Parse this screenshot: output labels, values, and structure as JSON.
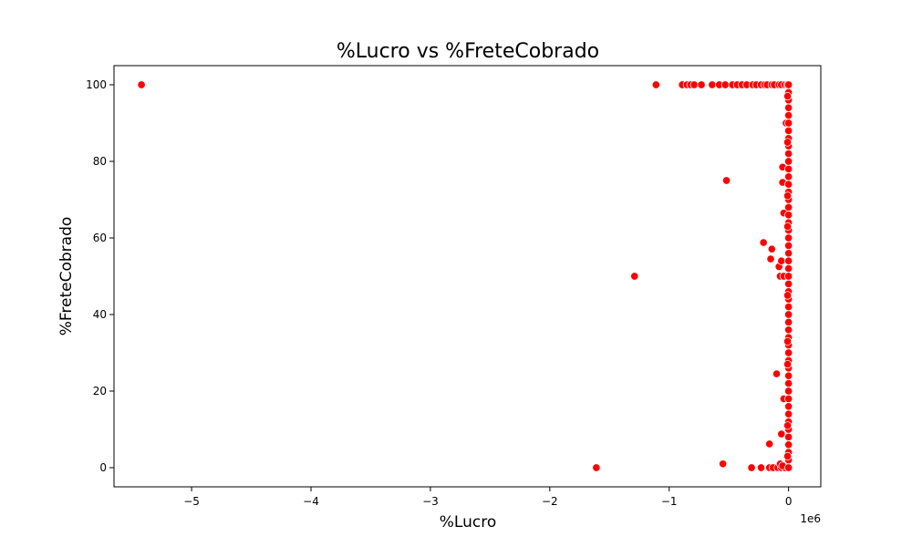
{
  "chart_data": {
    "type": "scatter",
    "title": "%Lucro vs %FreteCobrado",
    "xlabel": "%Lucro",
    "ylabel": "%FreteCobrado",
    "x_offset_label": "1e6",
    "x_scale": 1000000,
    "xlim": [
      -5650000,
      270000
    ],
    "ylim": [
      -5,
      105
    ],
    "x_ticks": [
      -5000000,
      -4000000,
      -3000000,
      -2000000,
      -1000000,
      0
    ],
    "x_tick_labels": [
      "−5",
      "−4",
      "−3",
      "−2",
      "−1",
      "0"
    ],
    "y_ticks": [
      0,
      20,
      40,
      60,
      80,
      100
    ],
    "y_tick_labels": [
      "0",
      "20",
      "40",
      "60",
      "80",
      "100"
    ],
    "marker_color": "#ff0000",
    "series": [
      {
        "points": [
          [
            -5420000,
            100
          ],
          [
            -1110000,
            100
          ],
          [
            -890000,
            100
          ],
          [
            -850000,
            100
          ],
          [
            -820000,
            100
          ],
          [
            -790000,
            100
          ],
          [
            -730000,
            100
          ],
          [
            -640000,
            100
          ],
          [
            -580000,
            100
          ],
          [
            -530000,
            100
          ],
          [
            -470000,
            100
          ],
          [
            -430000,
            100
          ],
          [
            -390000,
            100
          ],
          [
            -350000,
            100
          ],
          [
            -300000,
            100
          ],
          [
            -270000,
            100
          ],
          [
            -230000,
            100
          ],
          [
            -200000,
            100
          ],
          [
            -180000,
            100
          ],
          [
            -140000,
            100
          ],
          [
            -120000,
            100
          ],
          [
            -80000,
            100
          ],
          [
            -60000,
            100
          ],
          [
            -30000,
            100
          ],
          [
            -10000,
            100
          ],
          [
            -520000,
            75
          ],
          [
            -1290000,
            50
          ],
          [
            -1610000,
            0
          ],
          [
            -550000,
            1
          ],
          [
            -310000,
            0
          ],
          [
            -230000,
            0
          ],
          [
            -160000,
            0
          ],
          [
            -130000,
            0
          ],
          [
            -90000,
            0
          ],
          [
            -60000,
            0
          ],
          [
            -30000,
            0
          ],
          [
            -210000,
            58.8
          ],
          [
            -140000,
            57.1
          ],
          [
            -150000,
            54.5
          ],
          [
            -80000,
            52.5
          ],
          [
            -60000,
            54
          ],
          [
            -70000,
            50
          ],
          [
            -40000,
            50
          ],
          [
            -100000,
            24.5
          ],
          [
            -160000,
            6.2
          ],
          [
            -60000,
            8.8
          ],
          [
            -40000,
            18
          ],
          [
            -70000,
            1
          ],
          [
            -50000,
            0.5
          ],
          [
            -50000,
            78.5
          ],
          [
            -50000,
            74.5
          ],
          [
            -40000,
            66.5
          ],
          [
            -20000,
            90
          ],
          [
            0,
            100
          ],
          [
            0,
            98
          ],
          [
            0,
            96
          ],
          [
            0,
            94
          ],
          [
            0,
            92
          ],
          [
            0,
            90
          ],
          [
            0,
            88
          ],
          [
            0,
            86
          ],
          [
            0,
            84
          ],
          [
            0,
            82
          ],
          [
            0,
            80
          ],
          [
            0,
            78
          ],
          [
            0,
            76
          ],
          [
            0,
            74
          ],
          [
            0,
            72
          ],
          [
            0,
            70
          ],
          [
            0,
            68
          ],
          [
            0,
            66
          ],
          [
            0,
            64
          ],
          [
            0,
            62
          ],
          [
            0,
            60
          ],
          [
            0,
            58
          ],
          [
            0,
            56
          ],
          [
            0,
            54
          ],
          [
            0,
            52
          ],
          [
            0,
            50
          ],
          [
            0,
            48
          ],
          [
            0,
            46
          ],
          [
            0,
            44
          ],
          [
            0,
            42
          ],
          [
            0,
            40
          ],
          [
            0,
            38
          ],
          [
            0,
            36
          ],
          [
            0,
            34
          ],
          [
            0,
            32
          ],
          [
            0,
            30
          ],
          [
            0,
            28
          ],
          [
            0,
            26
          ],
          [
            0,
            24
          ],
          [
            0,
            22
          ],
          [
            0,
            20
          ],
          [
            0,
            18
          ],
          [
            0,
            16
          ],
          [
            0,
            14
          ],
          [
            0,
            12
          ],
          [
            0,
            10
          ],
          [
            0,
            8
          ],
          [
            0,
            6
          ],
          [
            0,
            4
          ],
          [
            0,
            2
          ],
          [
            0,
            0
          ],
          [
            -8000,
            97
          ],
          [
            -8000,
            85
          ],
          [
            -8000,
            71
          ],
          [
            -8000,
            63
          ],
          [
            -8000,
            45
          ],
          [
            -8000,
            33
          ],
          [
            -8000,
            27
          ],
          [
            -8000,
            11
          ],
          [
            -8000,
            3
          ]
        ]
      }
    ]
  }
}
